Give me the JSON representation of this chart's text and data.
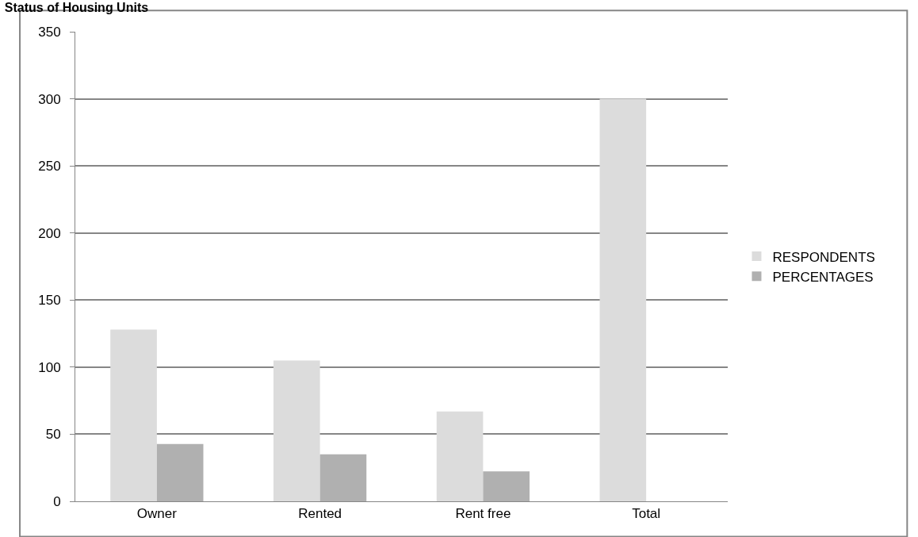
{
  "chart_data": {
    "type": "bar",
    "title": "Status of Housing Units",
    "categories": [
      "Owner",
      "Rented",
      "Rent free",
      "Total"
    ],
    "series": [
      {
        "name": "RESPONDENTS",
        "color": "#dcdcdc",
        "values": [
          128,
          105,
          67,
          300
        ]
      },
      {
        "name": "PERCENTAGES",
        "color": "#b0b0b0",
        "values": [
          42.7,
          35,
          22.3,
          null
        ]
      }
    ],
    "ylim": [
      0,
      350
    ],
    "yticks": [
      0,
      50,
      100,
      150,
      200,
      250,
      300,
      350
    ],
    "grid": "y",
    "legend": "right"
  }
}
